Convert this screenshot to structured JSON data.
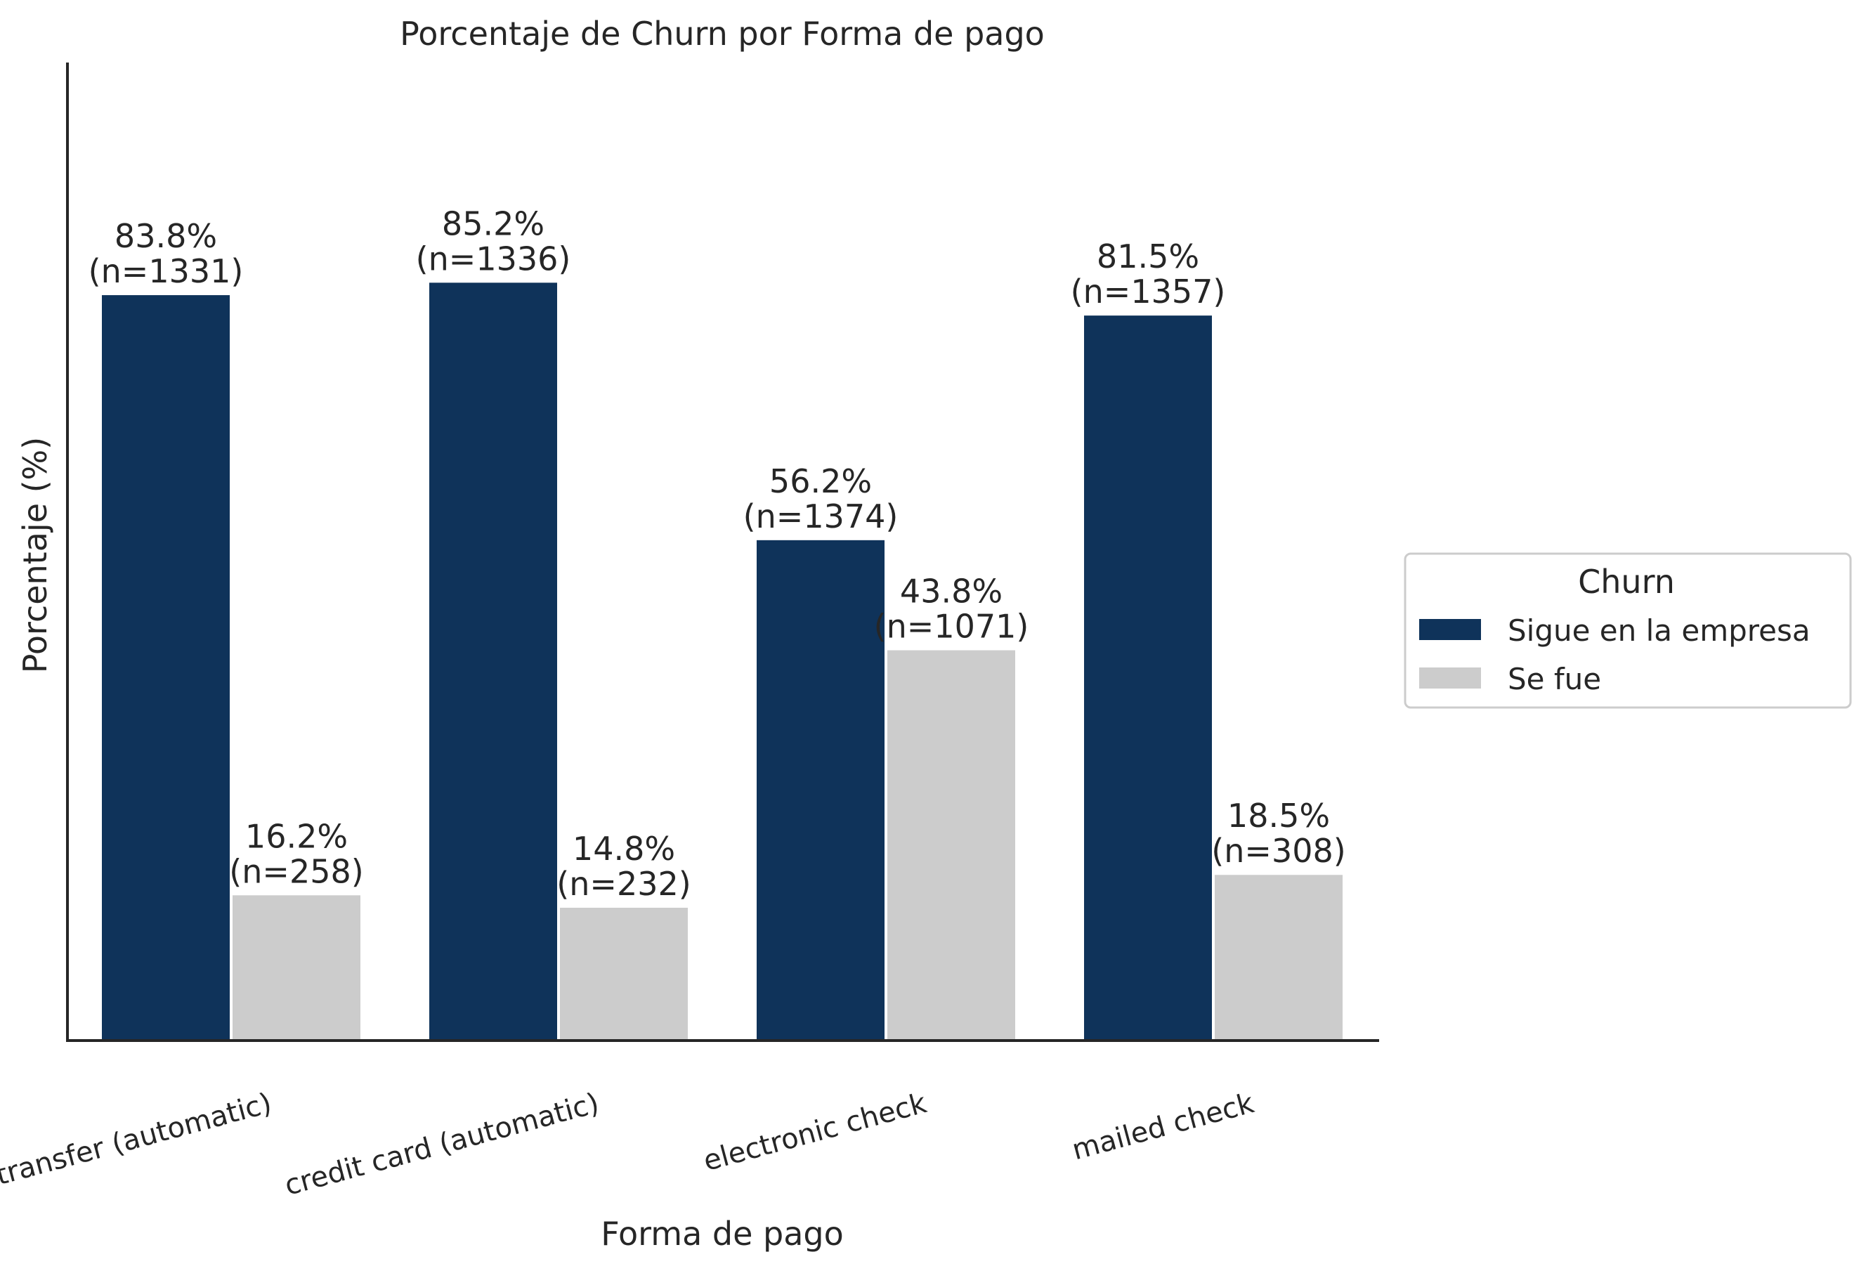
{
  "chart_data": {
    "type": "bar",
    "title": "Porcentaje de Churn por Forma de pago",
    "xlabel": "Forma de pago",
    "ylabel": "Porcentaje (%)",
    "categories": [
      "bank transfer (automatic)",
      "credit card (automatic)",
      "electronic check",
      "mailed check"
    ],
    "series": [
      {
        "name": "Sigue en la empresa",
        "color": "#0f335a",
        "values": [
          83.8,
          85.2,
          56.2,
          81.5
        ],
        "labels": [
          "83.8%",
          "85.2%",
          "56.2%",
          "81.5%"
        ],
        "counts": [
          "(n=1331)",
          "(n=1336)",
          "(n=1374)",
          "(n=1357)"
        ]
      },
      {
        "name": "Se fue",
        "color": "#cccccc",
        "values": [
          16.2,
          14.8,
          43.8,
          18.5
        ],
        "labels": [
          "16.2%",
          "14.8%",
          "43.8%",
          "18.5%"
        ],
        "counts": [
          "(n=258)",
          "(n=232)",
          "(n=1071)",
          "(n=308)"
        ]
      }
    ],
    "ylim": [
      0,
      110
    ],
    "y_ticks_shown": false,
    "grid": false,
    "legend": {
      "title": "Churn",
      "placement": "outside-right"
    }
  }
}
